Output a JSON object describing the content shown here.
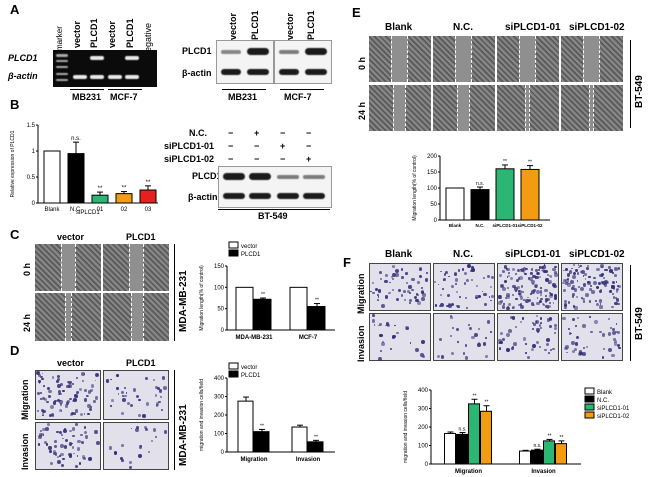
{
  "panels": {
    "A": {
      "label": "A",
      "lane_headers": [
        "marker",
        "vector",
        "PLCD1",
        "vector",
        "PLCD1",
        "negative"
      ],
      "row_labels": [
        "PLCD1",
        "β-actin"
      ],
      "groups": [
        "MB231",
        "MCF-7"
      ],
      "wb_lane_headers": [
        "vector",
        "PLCD1",
        "vector",
        "PLCD1"
      ],
      "wb_row_labels": [
        "PLCD1",
        "β-actin"
      ]
    },
    "B": {
      "label": "B",
      "ylabel": "Relative expression of PLCD1",
      "group_label": "siPLCD1",
      "wb_conditions": [
        "N.C.",
        "siPLCD1-01",
        "siPLCD1-02"
      ],
      "wb_signs": [
        [
          "−",
          "+",
          "−",
          "−"
        ],
        [
          "−",
          "−",
          "+",
          "−"
        ],
        [
          "−",
          "−",
          "−",
          "+"
        ]
      ],
      "wb_row_labels": [
        "PLCD1",
        "β-actin"
      ],
      "cell_line": "BT-549"
    },
    "C": {
      "label": "C",
      "col_labels": [
        "vector",
        "PLCD1"
      ],
      "row_labels": [
        "0 h",
        "24 h"
      ],
      "side_label": "MDA-MB-231",
      "ylabel": "Migration length(% of control)"
    },
    "D": {
      "label": "D",
      "col_labels": [
        "vector",
        "PLCD1"
      ],
      "row_labels": [
        "Migration",
        "Invasion"
      ],
      "side_label": "MDA-MB-231",
      "ylabel": "migration and invasion cells/field"
    },
    "E": {
      "label": "E",
      "col_labels": [
        "Blank",
        "N.C.",
        "siPLCD1-01",
        "siPLCD1-02"
      ],
      "row_labels": [
        "0 h",
        "24 h"
      ],
      "side_label": "BT-549",
      "ylabel": "Migration length(% of control)"
    },
    "F": {
      "label": "F",
      "col_labels": [
        "Blank",
        "N.C.",
        "siPLCD1-01",
        "siPLCD1-02"
      ],
      "row_labels": [
        "Migration",
        "Invasion"
      ],
      "side_label": "BT-549",
      "ylabel": "migration and invasion cells/field"
    }
  },
  "colors": {
    "black": "#000000",
    "white": "#ffffff",
    "green": "#2bb673",
    "orange": "#f39c12",
    "red": "#e62020",
    "gray": "#808080"
  },
  "chart_data": [
    {
      "id": "B",
      "type": "bar",
      "categories": [
        "Blank",
        "N.C.",
        "01",
        "02",
        "03"
      ],
      "values": [
        1.0,
        0.95,
        0.15,
        0.18,
        0.25
      ],
      "errors": [
        0.0,
        0.22,
        0.06,
        0.04,
        0.08
      ],
      "sig": [
        "",
        "n.s.",
        "**",
        "**",
        "**"
      ],
      "fills": [
        "#ffffff",
        "#000000",
        "#2bb673",
        "#f39c12",
        "#e62020"
      ],
      "yticks": [
        0.0,
        0.5,
        1.0,
        1.5
      ],
      "ylim": [
        0,
        1.5
      ],
      "ylabel": "Relative expression of PLCD1"
    },
    {
      "id": "C",
      "type": "bar",
      "categories": [
        "MDA-MB-231",
        "MCF-7"
      ],
      "series": [
        {
          "name": "vector",
          "values": [
            100,
            100
          ],
          "errors": [
            0,
            0
          ],
          "fill": "#ffffff"
        },
        {
          "name": "PLCD1",
          "values": [
            72,
            55
          ],
          "errors": [
            3,
            7
          ],
          "fill": "#000000"
        }
      ],
      "sig": [
        "**",
        "**"
      ],
      "yticks": [
        0,
        50,
        100,
        150
      ],
      "ylim": [
        0,
        150
      ],
      "ylabel": "Migration length(% of control)"
    },
    {
      "id": "D",
      "type": "bar",
      "categories": [
        "Migration",
        "Invasion"
      ],
      "series": [
        {
          "name": "vector",
          "values": [
            275,
            135
          ],
          "errors": [
            22,
            10
          ],
          "fill": "#ffffff"
        },
        {
          "name": "PLCD1",
          "values": [
            110,
            55
          ],
          "errors": [
            12,
            8
          ],
          "fill": "#000000"
        }
      ],
      "sig": [
        "**",
        "**"
      ],
      "yticks": [
        0,
        100,
        200,
        300,
        400
      ],
      "ylim": [
        0,
        400
      ],
      "ylabel": "migration and invasion cells/field"
    },
    {
      "id": "E",
      "type": "bar",
      "categories": [
        "Blank",
        "N.C.",
        "siPLCD1-01",
        "siPLCD1-02"
      ],
      "values": [
        100,
        95,
        160,
        158
      ],
      "errors": [
        0,
        8,
        12,
        12
      ],
      "sig": [
        "",
        "n.s.",
        "**",
        "**"
      ],
      "fills": [
        "#ffffff",
        "#000000",
        "#2bb673",
        "#f39c12"
      ],
      "yticks": [
        0,
        50,
        100,
        150,
        200
      ],
      "ylim": [
        0,
        200
      ],
      "ylabel": "Migration length(% of control)"
    },
    {
      "id": "F",
      "type": "bar",
      "categories": [
        "Migration",
        "Invasion"
      ],
      "series": [
        {
          "name": "Blank",
          "values": [
            165,
            70
          ],
          "errors": [
            8,
            4
          ],
          "fill": "#ffffff"
        },
        {
          "name": "N.C.",
          "values": [
            160,
            75
          ],
          "errors": [
            10,
            5
          ],
          "fill": "#000000"
        },
        {
          "name": "siPLCD1-01",
          "values": [
            325,
            125
          ],
          "errors": [
            25,
            8
          ],
          "fill": "#2bb673"
        },
        {
          "name": "siPLCD1-02",
          "values": [
            285,
            110
          ],
          "errors": [
            30,
            15
          ],
          "fill": "#f39c12"
        }
      ],
      "sig": [
        [
          "n.s.",
          "**",
          "**"
        ],
        [
          "n.s.",
          "**",
          "**"
        ]
      ],
      "yticks": [
        0,
        100,
        200,
        300,
        400
      ],
      "ylim": [
        0,
        400
      ],
      "ylabel": "migration and invasion cells/field"
    }
  ]
}
